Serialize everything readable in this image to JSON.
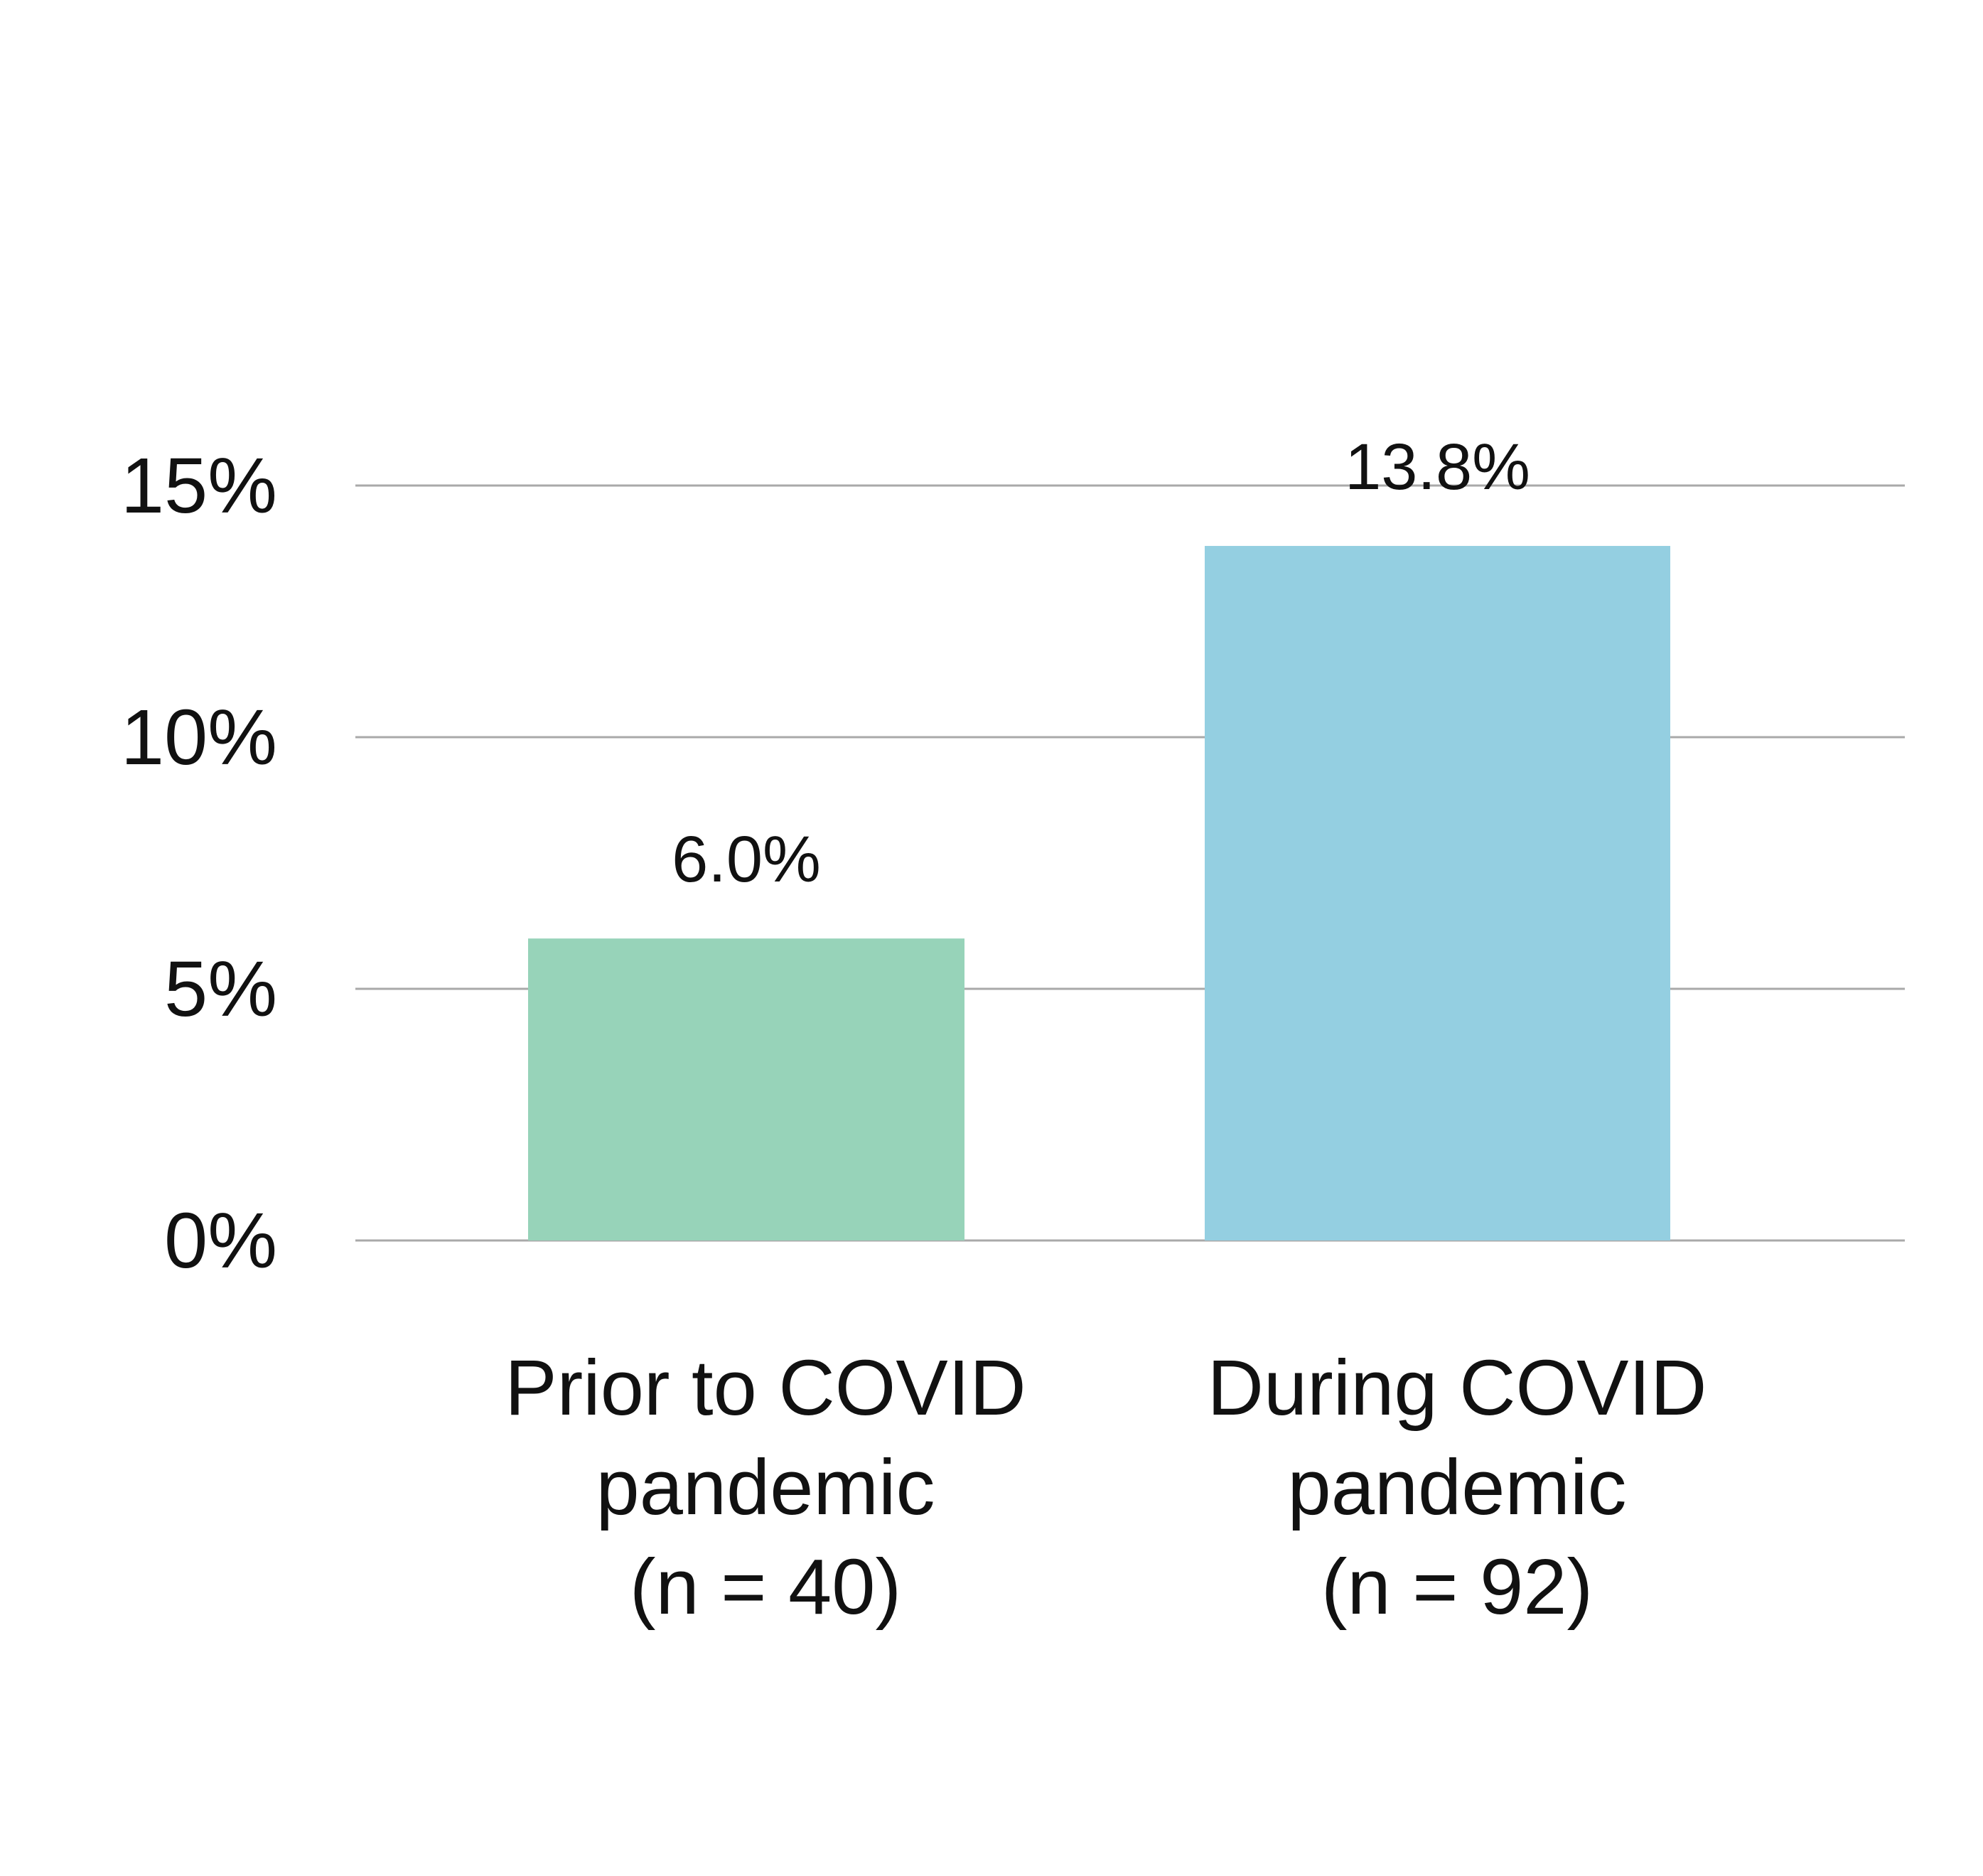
{
  "chart_data": {
    "type": "bar",
    "categories": [
      [
        "Prior to COVID",
        "pandemic",
        "(n = 40)"
      ],
      [
        "During COVID",
        "pandemic",
        "(n = 92)"
      ]
    ],
    "values": [
      6.0,
      13.8
    ],
    "data_labels": [
      "6.0%",
      "13.8%"
    ],
    "bar_colors": [
      "#97d3b9",
      "#94cfe1"
    ],
    "gridline_color": "#a9a9a9",
    "ylim": [
      0,
      15
    ],
    "yticks": [
      0,
      5,
      10,
      15
    ],
    "ytick_labels": [
      "0%",
      "5%",
      "10%",
      "15%"
    ],
    "grid": true,
    "legend": "none",
    "title": "",
    "xlabel": "",
    "ylabel": ""
  }
}
